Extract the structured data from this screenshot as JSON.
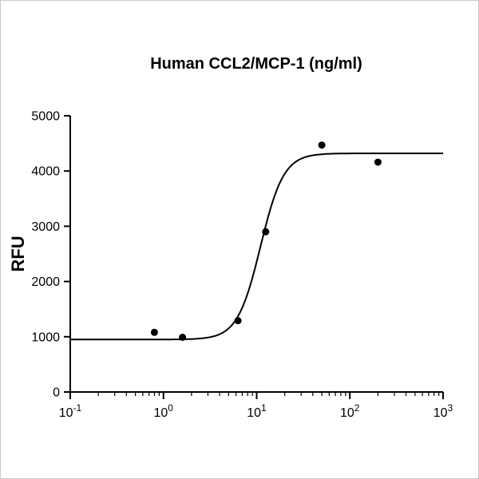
{
  "page": {
    "background": "#ffffff"
  },
  "chart_data": {
    "type": "scatter",
    "title": "Human CCL2/MCP-1 (ng/ml)",
    "xlabel": "",
    "ylabel": "RFU",
    "x_scale": "log",
    "xlim": [
      0.1,
      1000
    ],
    "ylim": [
      0,
      5000
    ],
    "grid": false,
    "legend": null,
    "y_ticks": [
      0,
      1000,
      2000,
      3000,
      4000,
      5000
    ],
    "y_tick_labels": [
      "0",
      "1000",
      "2000",
      "3000",
      "4000",
      "5000"
    ],
    "x_tick_base": "10",
    "x_tick_exponents": [
      -1,
      0,
      1,
      2,
      3
    ],
    "points": [
      {
        "x": 0.8,
        "y": 1080
      },
      {
        "x": 1.6,
        "y": 990
      },
      {
        "x": 6.3,
        "y": 1290
      },
      {
        "x": 12.5,
        "y": 2900
      },
      {
        "x": 50,
        "y": 4470
      },
      {
        "x": 200,
        "y": 4160
      }
    ],
    "fit_curve": {
      "model": "4PL-sigmoid",
      "bottom": 950,
      "top": 4320,
      "ec50": 11,
      "hill": 3.5
    },
    "point_color": "#000000",
    "line_color": "#000000",
    "axis_color": "#000000"
  }
}
